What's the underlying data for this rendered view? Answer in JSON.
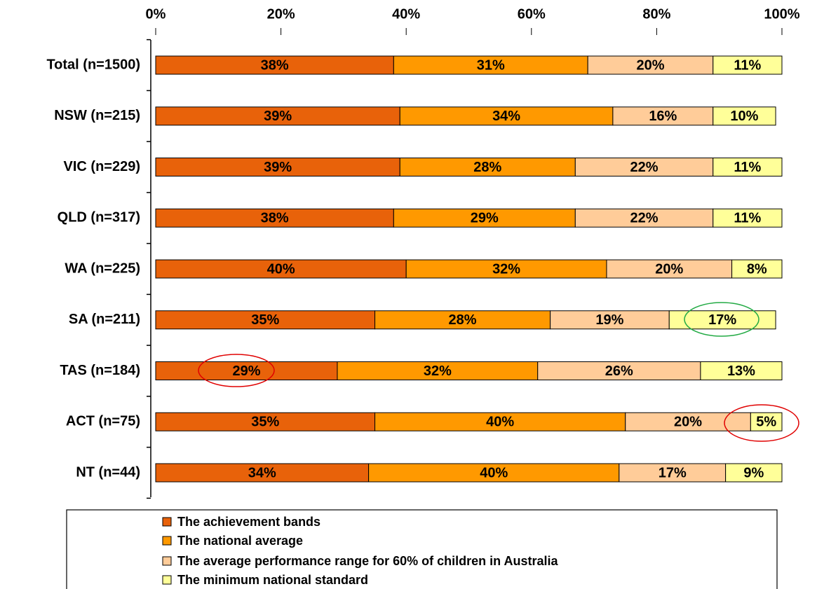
{
  "chart_data": {
    "type": "stacked_bar_horizontal",
    "categories": [
      "Total (n=1500)",
      "NSW (n=215)",
      "VIC (n=229)",
      "QLD (n=317)",
      "WA (n=225)",
      "SA (n=211)",
      "TAS (n=184)",
      "ACT (n=75)",
      "NT (n=44)"
    ],
    "series": [
      {
        "name": "The achievement bands",
        "color": "#e8620a",
        "values": [
          38,
          39,
          39,
          38,
          40,
          35,
          29,
          35,
          34
        ],
        "value_labels": [
          "38%",
          "39%",
          "39%",
          "38%",
          "40%",
          "35%",
          "29%",
          "35%",
          "34%"
        ]
      },
      {
        "name": "The national average",
        "color": "#ff9900",
        "values": [
          31,
          34,
          28,
          29,
          32,
          28,
          32,
          40,
          40
        ],
        "value_labels": [
          "31%",
          "34%",
          "28%",
          "29%",
          "32%",
          "28%",
          "32%",
          "40%",
          "40%"
        ]
      },
      {
        "name": "The average performance range for 60% of children in Australia",
        "color": "#ffcc99",
        "values": [
          20,
          16,
          22,
          22,
          20,
          19,
          26,
          20,
          17
        ],
        "value_labels": [
          "20%",
          "16%",
          "22%",
          "22%",
          "20%",
          "19%",
          "26%",
          "20%",
          "17%"
        ]
      },
      {
        "name": "The minimum national standard",
        "color": "#ffff99",
        "values": [
          11,
          10,
          11,
          11,
          8,
          17,
          13,
          5,
          9
        ],
        "value_labels": [
          "11%",
          "10%",
          "11%",
          "11%",
          "8%",
          "17%",
          "13%",
          "5%",
          "9%"
        ]
      }
    ],
    "xlim": [
      0,
      100
    ],
    "xticks": [
      {
        "value": 0,
        "label": "0%"
      },
      {
        "value": 20,
        "label": "20%"
      },
      {
        "value": 40,
        "label": "40%"
      },
      {
        "value": 60,
        "label": "60%"
      },
      {
        "value": 80,
        "label": "80%"
      },
      {
        "value": 100,
        "label": "100%"
      }
    ]
  }
}
